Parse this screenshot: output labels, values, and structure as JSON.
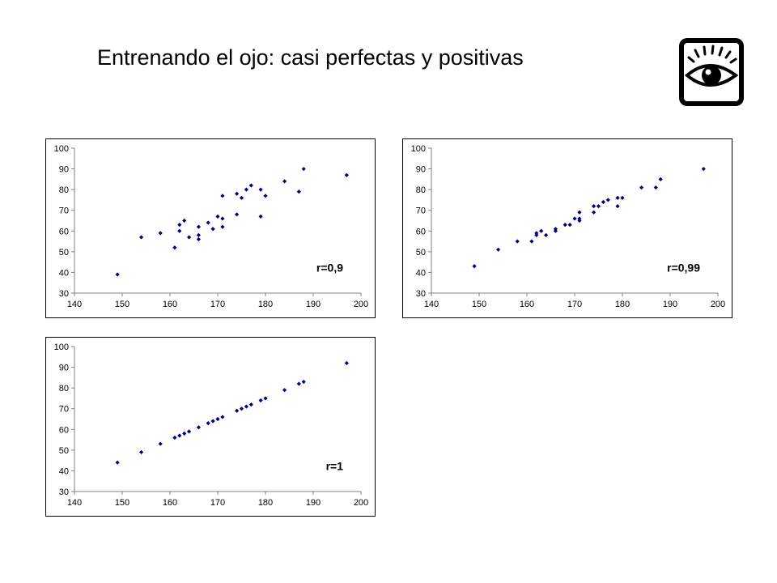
{
  "title": "Entrenando el ojo: casi perfectas y positivas",
  "icon": "eye-icon",
  "colors": {
    "marker": "#00007f",
    "axis": "#808080",
    "text": "#000000"
  },
  "chart_data": [
    {
      "type": "scatter",
      "annotation": "r=0,9",
      "xlim": [
        140,
        200
      ],
      "ylim": [
        30,
        100
      ],
      "xticks": [
        140,
        150,
        160,
        170,
        180,
        190,
        200
      ],
      "yticks": [
        30,
        40,
        50,
        60,
        70,
        80,
        90,
        100
      ],
      "points": [
        [
          149,
          39
        ],
        [
          154,
          57
        ],
        [
          158,
          59
        ],
        [
          161,
          52
        ],
        [
          162,
          63
        ],
        [
          162,
          60
        ],
        [
          163,
          65
        ],
        [
          164,
          57
        ],
        [
          166,
          62
        ],
        [
          166,
          58
        ],
        [
          166,
          56
        ],
        [
          168,
          64
        ],
        [
          169,
          61
        ],
        [
          170,
          67
        ],
        [
          171,
          77
        ],
        [
          171,
          66
        ],
        [
          171,
          62
        ],
        [
          174,
          68
        ],
        [
          174,
          78
        ],
        [
          175,
          76
        ],
        [
          176,
          80
        ],
        [
          177,
          82
        ],
        [
          179,
          80
        ],
        [
          179,
          67
        ],
        [
          180,
          77
        ],
        [
          184,
          84
        ],
        [
          187,
          79
        ],
        [
          188,
          90
        ],
        [
          197,
          87
        ]
      ]
    },
    {
      "type": "scatter",
      "annotation": "r=0,99",
      "xlim": [
        140,
        200
      ],
      "ylim": [
        30,
        100
      ],
      "xticks": [
        140,
        150,
        160,
        170,
        180,
        190,
        200
      ],
      "yticks": [
        30,
        40,
        50,
        60,
        70,
        80,
        90,
        100
      ],
      "points": [
        [
          149,
          43
        ],
        [
          154,
          51
        ],
        [
          158,
          55
        ],
        [
          161,
          55
        ],
        [
          162,
          59
        ],
        [
          162,
          58
        ],
        [
          163,
          60
        ],
        [
          164,
          58
        ],
        [
          166,
          61
        ],
        [
          166,
          60
        ],
        [
          168,
          63
        ],
        [
          169,
          63
        ],
        [
          170,
          66
        ],
        [
          171,
          69
        ],
        [
          171,
          65
        ],
        [
          171,
          66
        ],
        [
          174,
          69
        ],
        [
          174,
          72
        ],
        [
          175,
          72
        ],
        [
          176,
          74
        ],
        [
          177,
          75
        ],
        [
          179,
          76
        ],
        [
          179,
          72
        ],
        [
          180,
          76
        ],
        [
          184,
          81
        ],
        [
          187,
          81
        ],
        [
          188,
          85
        ],
        [
          197,
          90
        ]
      ]
    },
    {
      "type": "scatter",
      "annotation": "r=1",
      "xlim": [
        140,
        200
      ],
      "ylim": [
        30,
        100
      ],
      "xticks": [
        140,
        150,
        160,
        170,
        180,
        190,
        200
      ],
      "yticks": [
        30,
        40,
        50,
        60,
        70,
        80,
        90,
        100
      ],
      "points": [
        [
          149,
          44
        ],
        [
          154,
          49
        ],
        [
          158,
          53
        ],
        [
          161,
          56
        ],
        [
          162,
          57
        ],
        [
          163,
          58
        ],
        [
          164,
          59
        ],
        [
          166,
          61
        ],
        [
          168,
          63
        ],
        [
          169,
          64
        ],
        [
          170,
          65
        ],
        [
          171,
          66
        ],
        [
          174,
          69
        ],
        [
          175,
          70
        ],
        [
          176,
          71
        ],
        [
          177,
          72
        ],
        [
          179,
          74
        ],
        [
          180,
          75
        ],
        [
          184,
          79
        ],
        [
          187,
          82
        ],
        [
          188,
          83
        ],
        [
          197,
          92
        ]
      ]
    }
  ]
}
